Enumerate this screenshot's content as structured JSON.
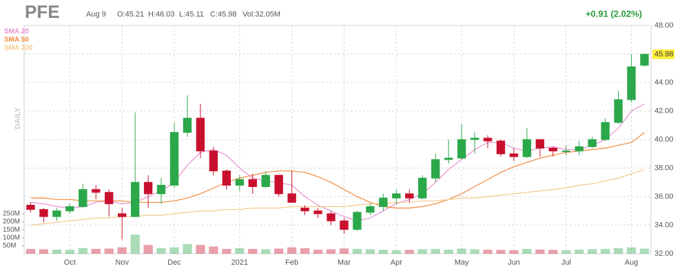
{
  "chart_data": {
    "type": "candlestick",
    "title": "PFE",
    "date": "Aug 9",
    "ohlc_text": [
      "O:45.21",
      "H:46.03",
      "L:45.11",
      "C:45.98"
    ],
    "volume_text": "Vol:32.05M",
    "change": "+0.91 (2.02%)",
    "period": "DAILY",
    "last_price": 45.98,
    "up_color": "#2ba84a",
    "down_color": "#c8102e",
    "categories": [
      null,
      null,
      null,
      "Oct",
      null,
      null,
      null,
      "Nov",
      null,
      null,
      null,
      "Dec",
      null,
      null,
      null,
      null,
      "2021",
      null,
      null,
      null,
      "Feb",
      null,
      null,
      null,
      "Mar",
      null,
      null,
      null,
      "Apr",
      null,
      null,
      null,
      null,
      "May",
      null,
      null,
      null,
      "Jun",
      null,
      null,
      null,
      "Jul",
      null,
      null,
      null,
      null,
      "Aug",
      null
    ],
    "open": [
      35.4,
      35.1,
      34.6,
      35.0,
      35.3,
      36.5,
      36.3,
      34.8,
      34.6,
      37.0,
      36.2,
      36.8,
      40.5,
      41.5,
      39.2,
      37.8,
      36.8,
      37.2,
      36.7,
      37.5,
      36.2,
      35.2,
      35.0,
      34.8,
      34.3,
      33.7,
      34.9,
      35.3,
      35.9,
      36.2,
      35.9,
      37.3,
      38.6,
      38.7,
      40.0,
      40.1,
      39.9,
      39.0,
      38.8,
      40.0,
      39.4,
      39.2,
      39.2,
      39.5,
      40.0,
      41.2,
      42.8,
      45.21
    ],
    "high": [
      35.6,
      35.2,
      35.2,
      35.5,
      36.9,
      36.8,
      36.5,
      35.2,
      41.9,
      37.5,
      37.3,
      41.2,
      43.1,
      42.5,
      39.5,
      37.9,
      37.5,
      37.6,
      37.8,
      37.5,
      37.8,
      35.4,
      35.2,
      35.0,
      34.5,
      35.0,
      35.5,
      36.2,
      36.5,
      36.5,
      37.5,
      39.0,
      40.0,
      41.1,
      40.5,
      40.3,
      40.0,
      39.4,
      40.8,
      40.0,
      39.5,
      39.6,
      39.9,
      40.2,
      41.5,
      43.4,
      46.0,
      46.03
    ],
    "low": [
      34.9,
      34.2,
      34.3,
      34.8,
      35.2,
      35.8,
      34.6,
      33.0,
      34.6,
      35.2,
      35.5,
      36.6,
      40.2,
      38.7,
      37.5,
      36.5,
      36.4,
      36.2,
      36.6,
      36.0,
      35.6,
      34.7,
      34.5,
      34.0,
      33.4,
      33.6,
      34.7,
      35.0,
      35.5,
      35.6,
      35.8,
      37.0,
      38.3,
      38.6,
      39.0,
      39.4,
      38.8,
      38.5,
      38.7,
      38.8,
      38.8,
      38.9,
      38.9,
      39.4,
      39.9,
      41.1,
      42.6,
      45.11
    ],
    "close": [
      35.1,
      34.6,
      35.0,
      35.3,
      36.5,
      36.3,
      35.5,
      34.6,
      37.0,
      36.2,
      36.8,
      40.5,
      41.5,
      39.2,
      37.8,
      36.8,
      37.2,
      36.7,
      37.5,
      36.2,
      35.6,
      35.0,
      34.8,
      34.3,
      33.7,
      34.9,
      35.3,
      35.9,
      36.2,
      35.9,
      37.3,
      38.6,
      38.7,
      40.0,
      40.1,
      39.9,
      39.0,
      38.8,
      40.0,
      39.4,
      39.2,
      39.2,
      39.5,
      40.0,
      41.2,
      42.8,
      45.1,
      45.98
    ],
    "volume": [
      30,
      28,
      26,
      24,
      35,
      30,
      32,
      40,
      120,
      55,
      35,
      40,
      60,
      55,
      45,
      30,
      35,
      30,
      28,
      32,
      40,
      35,
      25,
      28,
      33,
      30,
      28,
      25,
      22,
      24,
      28,
      30,
      26,
      32,
      28,
      25,
      24,
      22,
      30,
      26,
      24,
      22,
      26,
      28,
      30,
      35,
      40,
      32
    ],
    "ylim": [
      32,
      48
    ],
    "yticks": [
      {
        "value": 32,
        "label": "32.00"
      },
      {
        "value": 34,
        "label": "34.00"
      },
      {
        "value": 36,
        "label": "36.00"
      },
      {
        "value": 38,
        "label": "38.00"
      },
      {
        "value": 40,
        "label": "40.00"
      },
      {
        "value": 42,
        "label": "42.00"
      },
      {
        "value": 44,
        "label": "44.00"
      },
      {
        "value": 46,
        "label": "46.00"
      },
      {
        "value": 48,
        "label": "48.00"
      }
    ],
    "volume_ylim": [
      0,
      250
    ],
    "volume_ticks": [
      {
        "value": 50,
        "label": "50M"
      },
      {
        "value": 100,
        "label": "100M"
      },
      {
        "value": 150,
        "label": "150M"
      },
      {
        "value": 200,
        "label": "200M"
      },
      {
        "value": 250,
        "label": "250M"
      }
    ],
    "grid": true,
    "series": [
      {
        "name": "SMA 20",
        "color": "#e88fd0",
        "values": [
          35.6,
          35.5,
          35.3,
          35.2,
          35.3,
          35.6,
          35.7,
          35.5,
          35.6,
          36.0,
          36.4,
          37.0,
          38.2,
          39.1,
          39.3,
          38.9,
          38.0,
          37.3,
          37.1,
          37.0,
          36.8,
          36.0,
          35.4,
          35.0,
          34.6,
          34.3,
          34.5,
          35.0,
          35.5,
          35.8,
          36.2,
          37.0,
          37.9,
          38.6,
          39.3,
          39.8,
          39.8,
          39.4,
          39.2,
          39.4,
          39.5,
          39.3,
          39.3,
          39.6,
          40.0,
          40.8,
          42.0,
          42.5
        ]
      },
      {
        "name": "SMA 50",
        "color": "#f0883a",
        "values": [
          35.9,
          35.9,
          35.8,
          35.8,
          35.7,
          35.7,
          35.7,
          35.7,
          35.6,
          35.6,
          35.6,
          35.7,
          35.9,
          36.2,
          36.6,
          37.0,
          37.3,
          37.5,
          37.7,
          37.8,
          37.8,
          37.7,
          37.4,
          37.0,
          36.5,
          36.0,
          35.6,
          35.3,
          35.2,
          35.2,
          35.3,
          35.5,
          35.8,
          36.2,
          36.7,
          37.2,
          37.7,
          38.1,
          38.4,
          38.7,
          38.9,
          39.1,
          39.2,
          39.3,
          39.4,
          39.6,
          39.8,
          40.5
        ]
      },
      {
        "name": "SMA 200",
        "color": "#f5c98a",
        "values": [
          34.0,
          34.1,
          34.2,
          34.3,
          34.4,
          34.5,
          34.5,
          34.6,
          34.6,
          34.7,
          34.7,
          34.8,
          34.9,
          35.0,
          35.0,
          35.1,
          35.1,
          35.2,
          35.2,
          35.2,
          35.3,
          35.3,
          35.3,
          35.3,
          35.3,
          35.4,
          35.5,
          35.5,
          35.6,
          35.6,
          35.7,
          35.7,
          35.8,
          35.9,
          35.9,
          36.0,
          36.1,
          36.2,
          36.3,
          36.4,
          36.5,
          36.6,
          36.8,
          36.9,
          37.1,
          37.3,
          37.6,
          37.9
        ]
      }
    ]
  }
}
